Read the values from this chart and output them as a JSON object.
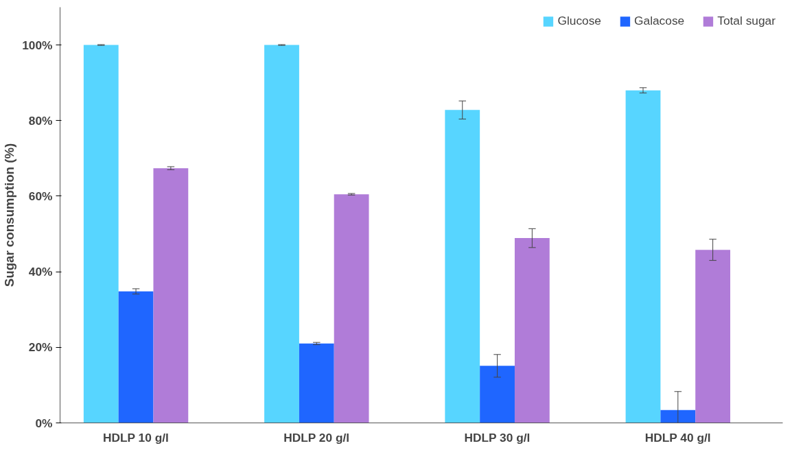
{
  "chart_data": {
    "type": "bar",
    "ylabel": "Sugar consumption (%)",
    "categories": [
      "HDLP 10 g/l",
      "HDLP 20 g/l",
      "HDLP 30 g/l",
      "HDLP 40 g/l"
    ],
    "series": [
      {
        "name": "Glucose",
        "color": "#57d5ff",
        "values": [
          100,
          100,
          82.8,
          88.0
        ],
        "errors": [
          0.1,
          0.1,
          2.4,
          0.7
        ]
      },
      {
        "name": "Galacose",
        "color": "#1f66ff",
        "values": [
          34.8,
          21.0,
          15.1,
          3.4
        ],
        "errors": [
          0.7,
          0.3,
          3.0,
          [
            0,
            8.3
          ]
        ]
      },
      {
        "name": "Total sugar",
        "color": "#b07cd8",
        "values": [
          67.4,
          60.5,
          48.9,
          45.8
        ],
        "errors": [
          0.4,
          0.2,
          2.5,
          2.8
        ]
      }
    ],
    "ylim": [
      0,
      110
    ],
    "yticks": [
      {
        "value": 0,
        "label": "0%"
      },
      {
        "value": 20,
        "label": "20%"
      },
      {
        "value": 40,
        "label": "40%"
      },
      {
        "value": 60,
        "label": "60%"
      },
      {
        "value": 80,
        "label": "80%"
      },
      {
        "value": 100,
        "label": "100%"
      }
    ],
    "grid": false,
    "legend": "top right"
  }
}
